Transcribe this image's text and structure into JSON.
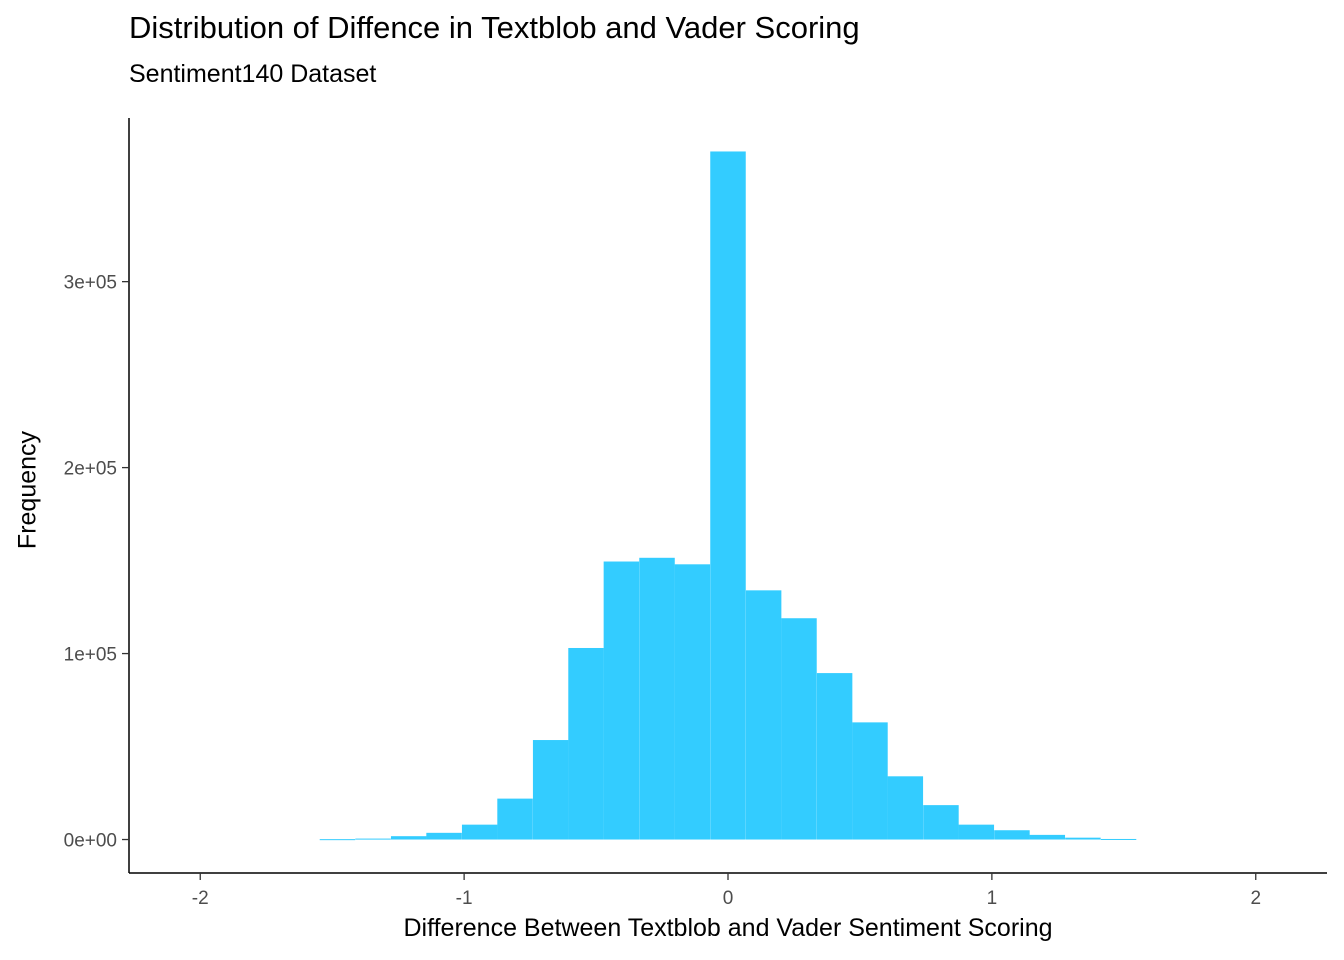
{
  "chart_data": {
    "type": "bar",
    "title": "Distribution of Diffence in Textblob and Vader Scoring",
    "subtitle": "Sentiment140 Dataset",
    "xlabel": "Difference Between Textblob and Vader Sentiment Scoring",
    "ylabel": "Frequency",
    "xlim": [
      -2.27,
      2.27
    ],
    "ylim": [
      -18000,
      388000
    ],
    "x_ticks": [
      {
        "value": -2,
        "label": "-2"
      },
      {
        "value": -1,
        "label": "-1"
      },
      {
        "value": 0,
        "label": "0"
      },
      {
        "value": 1,
        "label": "1"
      },
      {
        "value": 2,
        "label": "2"
      }
    ],
    "y_ticks": [
      {
        "value": 0,
        "label": "0e+00"
      },
      {
        "value": 100000,
        "label": "1e+05"
      },
      {
        "value": 200000,
        "label": "2e+05"
      },
      {
        "value": 300000,
        "label": "3e+05"
      }
    ],
    "bin_width": 0.1345,
    "x": [
      -1.48,
      -1.345,
      -1.21,
      -1.076,
      -0.941,
      -0.807,
      -0.672,
      -0.538,
      -0.404,
      -0.269,
      -0.135,
      0.0,
      0.135,
      0.269,
      0.404,
      0.538,
      0.672,
      0.807,
      0.941,
      1.076,
      1.21,
      1.345,
      1.48
    ],
    "values": [
      200,
      500,
      1800,
      3600,
      8000,
      22000,
      53500,
      103000,
      149500,
      151500,
      148000,
      370000,
      134000,
      119000,
      89500,
      63000,
      34000,
      18500,
      8000,
      5000,
      2500,
      1000,
      300
    ],
    "bar_color": "#33CCFF",
    "grid": false,
    "legend": "none"
  }
}
